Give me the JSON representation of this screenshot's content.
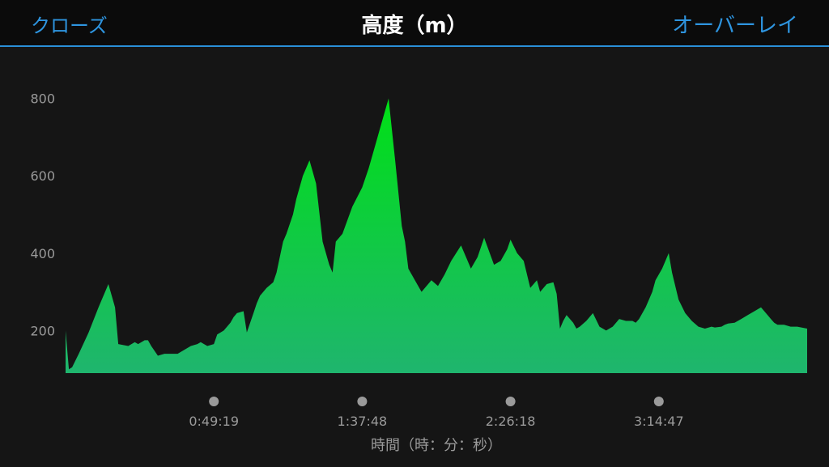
{
  "header": {
    "close_label": "クローズ",
    "title": "高度（m）",
    "overlay_label": "オーバーレイ"
  },
  "colors": {
    "accent": "#2e95e0",
    "fill_top": "#00e016",
    "fill_bottom": "#1fb56e"
  },
  "chart_data": {
    "type": "area",
    "title": "高度（m）",
    "xlabel": "時間（時：分：秒）",
    "ylabel": "",
    "ylim": [
      90,
      820
    ],
    "xlim": [
      0,
      225
    ],
    "yticks": [
      200,
      400,
      600,
      800
    ],
    "xticks": [
      {
        "label": "0:49:19",
        "value": 45
      },
      {
        "label": "1:37:48",
        "value": 90
      },
      {
        "label": "2:26:18",
        "value": 135
      },
      {
        "label": "3:14:47",
        "value": 180
      }
    ],
    "grid": false,
    "series": [
      {
        "x": [
          0,
          1,
          2,
          4,
          7,
          10,
          13,
          15,
          16,
          19,
          21,
          22,
          24,
          25,
          26,
          28,
          30,
          32,
          34,
          38,
          40,
          41,
          43,
          45,
          46,
          48,
          50,
          51,
          52,
          54,
          55,
          57,
          58,
          59,
          61,
          63,
          64,
          65,
          66,
          67,
          69,
          70,
          72,
          74,
          76,
          78,
          80,
          81,
          82,
          84,
          87,
          90,
          92,
          94,
          96,
          98,
          100,
          102,
          103,
          104,
          106,
          108,
          111,
          113,
          115,
          117,
          120,
          123,
          125,
          127,
          130,
          132,
          134,
          135,
          137,
          139,
          141,
          142,
          143,
          144,
          146,
          148,
          149,
          150,
          151,
          152,
          154,
          155,
          156,
          158,
          160,
          162,
          163,
          164,
          166,
          168,
          170,
          172,
          173,
          174,
          176,
          177,
          178,
          179,
          181,
          183,
          184,
          186,
          188,
          190,
          192,
          194,
          196,
          197,
          199,
          200,
          201,
          203,
          205,
          207,
          209,
          211,
          213,
          214,
          215,
          216,
          218,
          220,
          221,
          222,
          225
        ],
        "y": [
          200,
          100,
          105,
          140,
          195,
          260,
          320,
          260,
          165,
          160,
          170,
          165,
          175,
          175,
          160,
          135,
          140,
          140,
          140,
          160,
          165,
          170,
          160,
          165,
          190,
          200,
          220,
          235,
          245,
          250,
          195,
          245,
          270,
          290,
          310,
          325,
          350,
          390,
          430,
          450,
          500,
          540,
          600,
          640,
          580,
          430,
          370,
          350,
          430,
          450,
          520,
          570,
          620,
          680,
          740,
          800,
          640,
          470,
          430,
          360,
          330,
          300,
          330,
          315,
          345,
          380,
          420,
          360,
          390,
          440,
          370,
          380,
          410,
          435,
          400,
          380,
          310,
          320,
          330,
          300,
          320,
          325,
          295,
          205,
          225,
          240,
          220,
          205,
          210,
          225,
          245,
          210,
          205,
          200,
          210,
          230,
          225,
          225,
          220,
          230,
          260,
          280,
          300,
          330,
          360,
          400,
          350,
          280,
          245,
          225,
          210,
          205,
          210,
          208,
          210,
          215,
          218,
          220,
          230,
          240,
          250,
          260,
          240,
          230,
          220,
          215,
          215,
          210,
          210,
          210,
          205
        ]
      }
    ]
  }
}
